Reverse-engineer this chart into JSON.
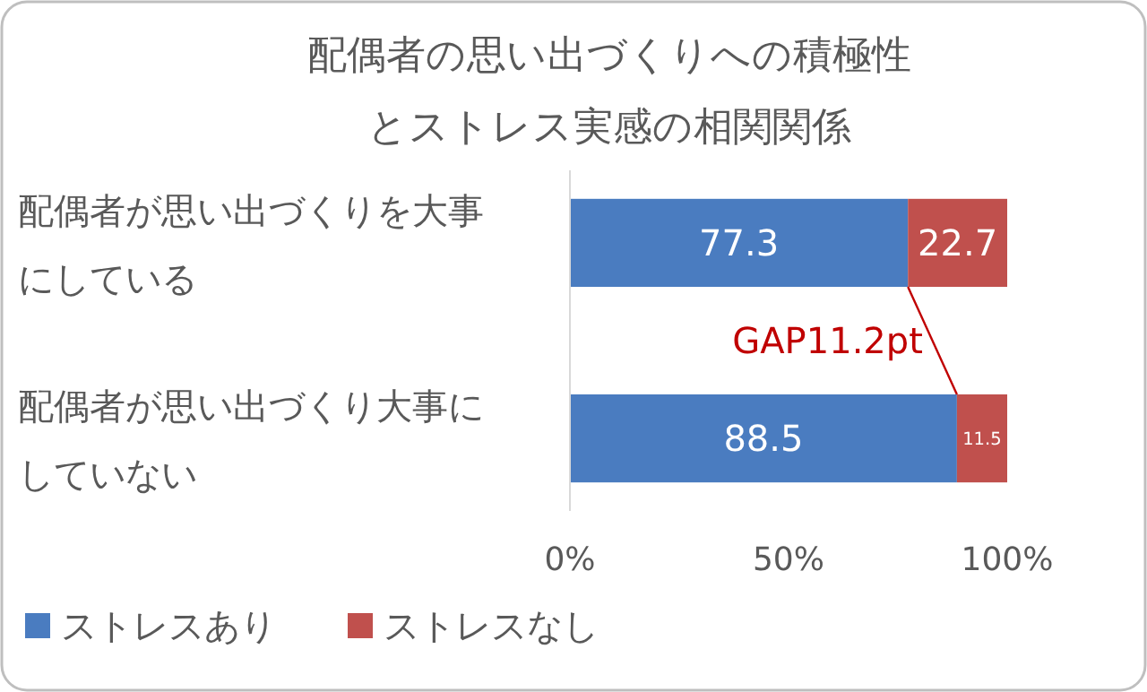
{
  "chart_data": {
    "type": "bar",
    "orientation": "horizontal",
    "stacked": true,
    "title": "配偶者の思い出づくりへの積極性とストレス実感の相関関係",
    "categories": [
      "配偶者が思い出づくりを大事にしている",
      "配偶者が思い出づくり大事にしていない"
    ],
    "series": [
      {
        "name": "ストレスあり",
        "color": "#4a7cc0",
        "values": [
          77.3,
          88.5
        ]
      },
      {
        "name": "ストレスなし",
        "color": "#c0504d",
        "values": [
          22.7,
          11.5
        ]
      }
    ],
    "xlim": [
      0,
      100
    ],
    "xticks": [
      {
        "value": 0,
        "label": "0%"
      },
      {
        "value": 50,
        "label": "50%"
      },
      {
        "value": 100,
        "label": "100%"
      }
    ],
    "data_labels": true,
    "grid": false,
    "legend": "bottom",
    "annotations": [
      {
        "text": "GAP11.2pt",
        "x": 88.5,
        "y": "配偶者が思い出づくり大事にしていない"
      }
    ]
  }
}
